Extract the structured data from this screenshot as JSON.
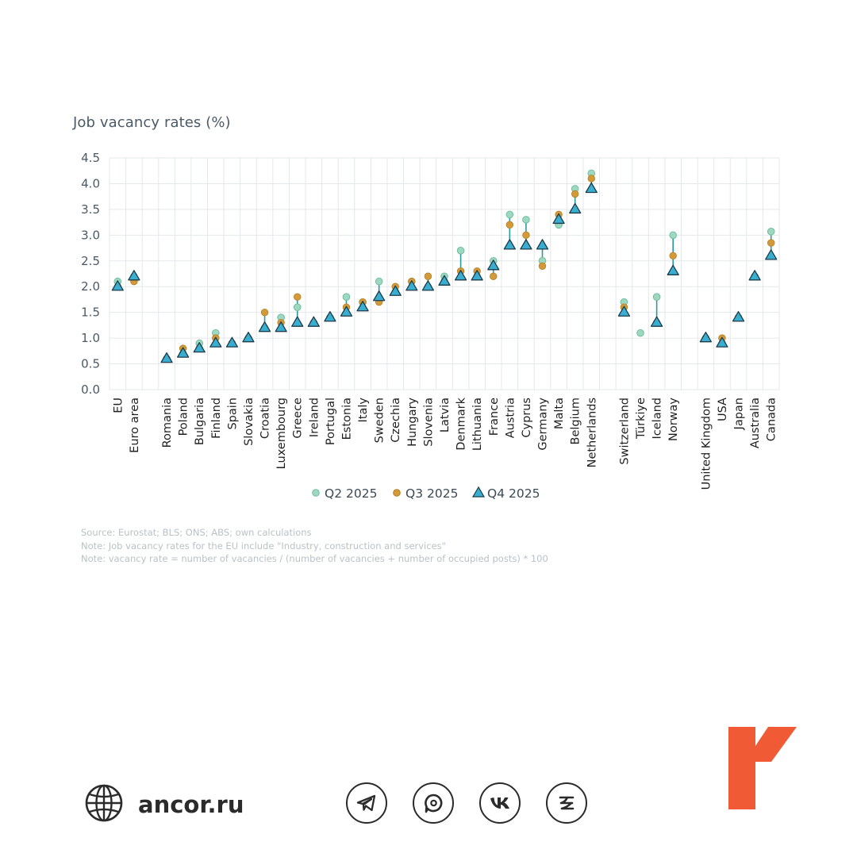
{
  "chart_data": {
    "type": "dot-plot",
    "title": "Job vacancy rates (%)",
    "ylim": [
      0,
      4.5
    ],
    "yticks": [
      "0.0",
      "0.5",
      "1.0",
      "1.5",
      "2.0",
      "2.5",
      "3.0",
      "3.5",
      "4.0",
      "4.5"
    ],
    "grid": true,
    "legend_position": "bottom",
    "categories": [
      "EU",
      "Euro area",
      "",
      "Romania",
      "Poland",
      "Bulgaria",
      "Finland",
      "Spain",
      "Slovakia",
      "Croatia",
      "Luxembourg",
      "Greece",
      "Ireland",
      "Portugal",
      "Estonia",
      "Italy",
      "Sweden",
      "Czechia",
      "Hungary",
      "Slovenia",
      "Latvia",
      "Denmark",
      "Lithuania",
      "France",
      "Austria",
      "Cyprus",
      "Germany",
      "Malta",
      "Belgium",
      "Netherlands",
      "",
      "Switzerland",
      "Türkiye",
      "Iceland",
      "Norway",
      "",
      "United Kingdom",
      "USA",
      "Japan",
      "Australia",
      "Canada"
    ],
    "series": [
      {
        "name": "Q2 2025",
        "marker": "circle",
        "color": "#9fd8c0",
        "values": [
          2.1,
          2.2,
          null,
          0.6,
          0.7,
          0.9,
          1.1,
          0.9,
          1.0,
          1.2,
          1.4,
          1.6,
          1.3,
          1.4,
          1.8,
          1.7,
          2.1,
          1.9,
          2.1,
          2.0,
          2.2,
          2.7,
          2.2,
          2.5,
          3.4,
          3.3,
          2.5,
          3.2,
          3.9,
          4.2,
          null,
          1.7,
          1.1,
          1.8,
          3.0,
          null,
          1.0,
          0.9,
          1.4,
          2.2,
          3.07
        ]
      },
      {
        "name": "Q3 2025",
        "marker": "circle",
        "color": "#d39a3a",
        "values": [
          2.0,
          2.1,
          null,
          0.6,
          0.8,
          0.8,
          1.0,
          0.9,
          1.0,
          1.5,
          1.3,
          1.8,
          1.3,
          1.4,
          1.6,
          1.7,
          1.7,
          2.0,
          2.1,
          2.2,
          2.1,
          2.3,
          2.3,
          2.2,
          3.2,
          3.0,
          2.4,
          3.4,
          3.8,
          4.1,
          null,
          1.6,
          null,
          1.3,
          2.6,
          null,
          1.0,
          1.0,
          1.4,
          2.2,
          2.85
        ]
      },
      {
        "name": "Q4 2025",
        "marker": "triangle",
        "color": "#3aaed0",
        "values": [
          2.0,
          2.2,
          null,
          0.6,
          0.7,
          0.8,
          0.9,
          0.9,
          1.0,
          1.2,
          1.2,
          1.3,
          1.3,
          1.4,
          1.5,
          1.6,
          1.8,
          1.9,
          2.0,
          2.0,
          2.1,
          2.2,
          2.2,
          2.4,
          2.8,
          2.8,
          2.8,
          3.3,
          3.5,
          3.9,
          null,
          1.5,
          null,
          1.3,
          2.3,
          null,
          1.0,
          0.9,
          1.4,
          2.2,
          2.6
        ]
      }
    ]
  },
  "notes": [
    "Source: Eurostat; BLS; ONS; ABS; own calculations",
    "Note: Job vacancy rates for the EU include \"Industry, construction and services\"",
    "Note: vacancy rate = number of vacancies / (number of vacancies + number of occupied posts) * 100"
  ],
  "footer": {
    "site": "ancor.ru",
    "globe_icon": "globe-icon",
    "social_icons": [
      "telegram-icon",
      "max-messenger-icon",
      "vk-icon",
      "zen-icon"
    ]
  },
  "colors": {
    "q2": "#9fd8c0",
    "q3": "#d39a3a",
    "q4": "#3aaed0",
    "connector": "#2a9aa0",
    "grid": "#e3e8ea",
    "brand_logo": "#f05a35"
  }
}
